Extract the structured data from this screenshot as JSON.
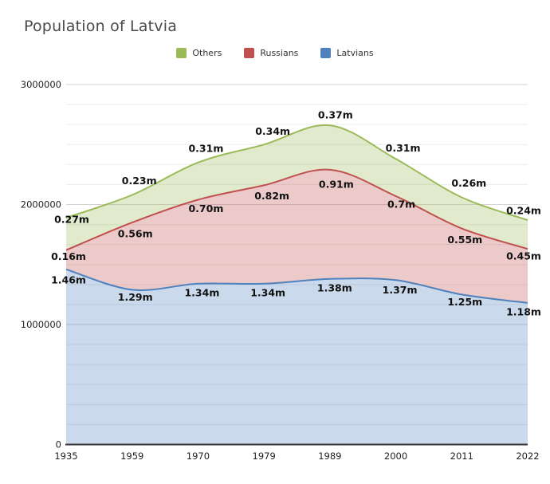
{
  "title": "Population of Latvia",
  "legend": [
    {
      "label": "Others",
      "color": "#9bbb59"
    },
    {
      "label": "Russians",
      "color": "#c0504d"
    },
    {
      "label": "Latvians",
      "color": "#4f81bd"
    }
  ],
  "chart_data": {
    "type": "area",
    "stacked": true,
    "title": "Population of Latvia",
    "x": [
      "1935",
      "1959",
      "1970",
      "1979",
      "1989",
      "2000",
      "2011",
      "2022"
    ],
    "series": [
      {
        "name": "Latvians",
        "color": "#4f81bd",
        "values": [
          1460000,
          1290000,
          1340000,
          1340000,
          1380000,
          1370000,
          1250000,
          1180000
        ],
        "labels": [
          "1.46m",
          "1.29m",
          "1.34m",
          "1.34m",
          "1.38m",
          "1.37m",
          "1.25m",
          "1.18m"
        ]
      },
      {
        "name": "Russians",
        "color": "#c0504d",
        "values": [
          160000,
          560000,
          700000,
          820000,
          910000,
          700000,
          550000,
          450000
        ],
        "labels": [
          "0.16m",
          "0.56m",
          "0.70m",
          "0.82m",
          "0.91m",
          "0.7m",
          "0.55m",
          "0.45m"
        ]
      },
      {
        "name": "Others",
        "color": "#9bbb59",
        "values": [
          270000,
          230000,
          310000,
          340000,
          370000,
          310000,
          260000,
          240000
        ],
        "labels": [
          "0.27m",
          "0.23m",
          "0.31m",
          "0.34m",
          "0.37m",
          "0.31m",
          "0.26m",
          "0.24m"
        ]
      }
    ],
    "yticks": [
      "0",
      "1000000",
      "2000000",
      "3000000"
    ],
    "ylim": [
      0,
      3000000
    ],
    "grid": true,
    "legend_position": "top",
    "colors": {
      "grid_minor": "#ebebeb",
      "grid_major": "#d2d2d2",
      "axis_line": "#333333",
      "tick_text": "#222222",
      "title_text": "#4a4a4a"
    }
  }
}
